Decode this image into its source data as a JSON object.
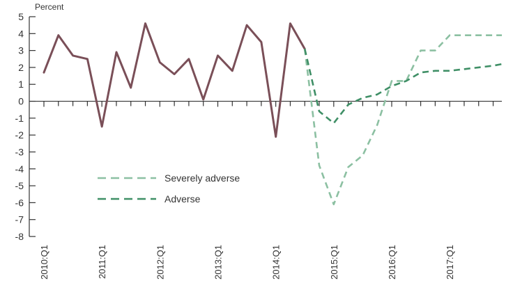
{
  "chart_data": {
    "type": "line",
    "ylabel": "Percent",
    "ylim": [
      -8,
      5
    ],
    "yticks": [
      5,
      4,
      3,
      2,
      1,
      0,
      -1,
      -2,
      -3,
      -4,
      -5,
      -6,
      -7,
      -8
    ],
    "xlim": [
      2010.0,
      2017.9
    ],
    "xticks": [
      {
        "x": 2010.0,
        "label": "2010:Q1"
      },
      {
        "x": 2011.0,
        "label": "2011:Q1"
      },
      {
        "x": 2012.0,
        "label": "2012:Q1"
      },
      {
        "x": 2013.0,
        "label": "2013:Q1"
      },
      {
        "x": 2014.0,
        "label": "2014:Q1"
      },
      {
        "x": 2015.0,
        "label": "2015:Q1"
      },
      {
        "x": 2016.0,
        "label": "2016:Q1"
      },
      {
        "x": 2017.0,
        "label": "2017:Q1"
      }
    ],
    "series": [
      {
        "name": "",
        "style": "solid",
        "color": "#7a4f58",
        "x": [
          2010.0,
          2010.25,
          2010.5,
          2010.75,
          2011.0,
          2011.25,
          2011.5,
          2011.75,
          2012.0,
          2012.25,
          2012.5,
          2012.75,
          2013.0,
          2013.25,
          2013.5,
          2013.75,
          2014.0,
          2014.25,
          2014.5
        ],
        "values": [
          1.7,
          3.9,
          2.7,
          2.5,
          -1.5,
          2.9,
          0.8,
          4.6,
          2.3,
          1.6,
          2.5,
          0.1,
          2.7,
          1.8,
          4.5,
          3.5,
          -2.1,
          4.6,
          3.1
        ]
      },
      {
        "name": "Severely adverse",
        "style": "dashed",
        "color": "#8cc0a2",
        "x": [
          2014.5,
          2014.75,
          2015.0,
          2015.25,
          2015.5,
          2015.75,
          2016.0,
          2016.25,
          2016.5,
          2016.75,
          2017.0,
          2017.25,
          2017.5,
          2017.75,
          2017.9
        ],
        "values": [
          3.1,
          -3.8,
          -6.1,
          -3.9,
          -3.2,
          -1.4,
          1.2,
          1.2,
          3.0,
          3.0,
          3.9,
          3.9,
          3.9,
          3.9,
          3.9
        ]
      },
      {
        "name": "Adverse",
        "style": "dashed",
        "color": "#3f8f66",
        "x": [
          2014.5,
          2014.75,
          2015.0,
          2015.25,
          2015.5,
          2015.75,
          2016.0,
          2016.25,
          2016.5,
          2016.75,
          2017.0,
          2017.25,
          2017.5,
          2017.75,
          2017.9
        ],
        "values": [
          3.1,
          -0.6,
          -1.3,
          -0.2,
          0.2,
          0.4,
          0.9,
          1.2,
          1.7,
          1.8,
          1.8,
          1.9,
          2.0,
          2.1,
          2.2
        ]
      }
    ],
    "legend": {
      "placement": "lower-left",
      "entries": [
        {
          "label": "Severely adverse",
          "color": "#8cc0a2"
        },
        {
          "label": "Adverse",
          "color": "#3f8f66"
        }
      ]
    },
    "grid": false
  }
}
